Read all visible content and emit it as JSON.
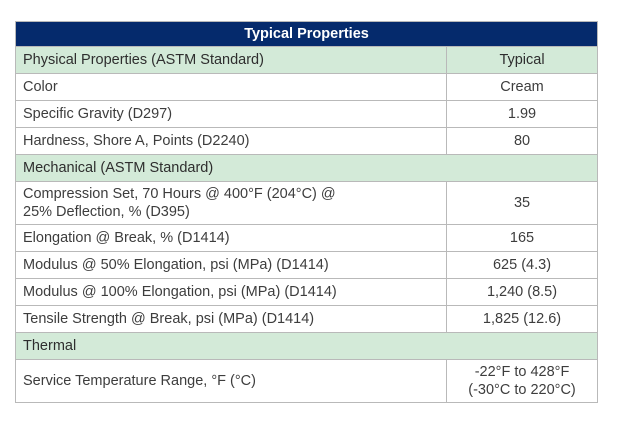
{
  "table": {
    "title": "Typical Properties",
    "header": {
      "property": "Physical Properties (ASTM Standard)",
      "value": "Typical"
    },
    "rows": [
      {
        "property": "Color",
        "value": "Cream"
      },
      {
        "property": "Specific Gravity (D297)",
        "value": "1.99"
      },
      {
        "property": "Hardness, Shore A, Points (D2240)",
        "value": "80"
      },
      {
        "section": "Mechanical (ASTM Standard)"
      },
      {
        "property": "Compression Set, 70 Hours @ 400°F (204°C) @ 25% Deflection, % (D395)",
        "property_line1": "Compression Set, 70 Hours @ 400°F (204°C) @",
        "property_line2": "25% Deflection, % (D395)",
        "value": "35"
      },
      {
        "property": "Elongation @ Break, % (D1414)",
        "value": "165"
      },
      {
        "property": "Modulus @ 50% Elongation, psi (MPa) (D1414)",
        "value": "625 (4.3)"
      },
      {
        "property": "Modulus @ 100% Elongation, psi (MPa) (D1414)",
        "value": "1,240 (8.5)"
      },
      {
        "property": "Tensile Strength @ Break, psi (MPa) (D1414)",
        "value": "1,825 (12.6)"
      },
      {
        "section": "Thermal"
      },
      {
        "property": "Service Temperature Range, °F (°C)",
        "value": "-22°F to 428°F (-30°C to 220°C)",
        "value_line1": "-22°F to 428°F",
        "value_line2": "(-30°C to 220°C)"
      }
    ]
  },
  "colors": {
    "title_bg": "#052a6c",
    "section_bg": "#d3ead8",
    "border": "#b9b9b9",
    "text": "#3d3d3d"
  }
}
